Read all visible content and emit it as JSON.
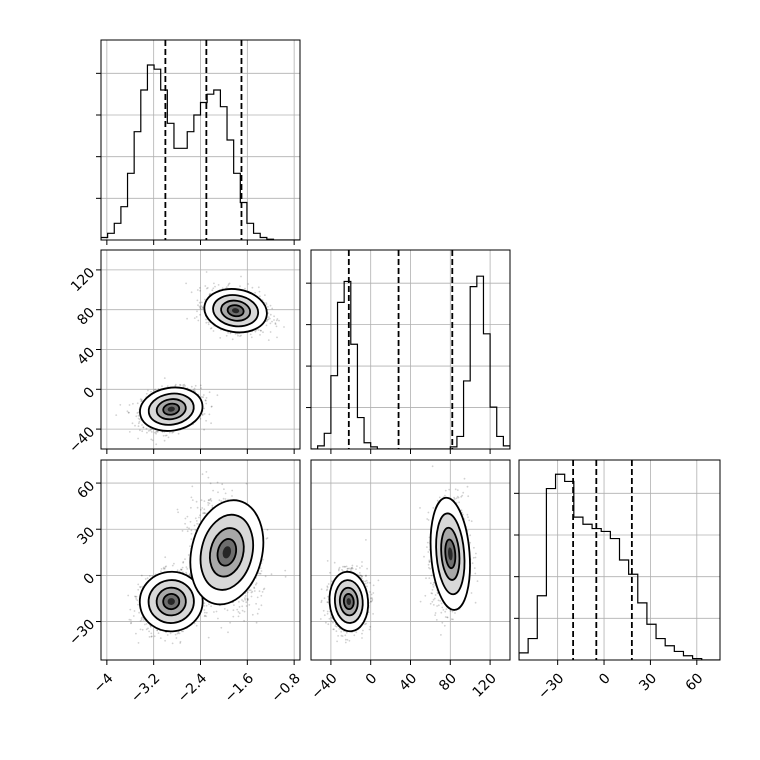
{
  "chart_data": {
    "type": "corner",
    "grid": true,
    "histograms": [
      {
        "param": 0,
        "range": [
          -4.1,
          -0.7
        ],
        "bins": 30,
        "counts": [
          0.3,
          0.8,
          2,
          4,
          8,
          13,
          18,
          21,
          20.5,
          18,
          14,
          11,
          11,
          13,
          15,
          16.5,
          17.5,
          18,
          16,
          12,
          8,
          4.5,
          2,
          0.8,
          0.3,
          0.1,
          0,
          0,
          0,
          0
        ],
        "quantiles": [
          -3.0,
          -2.3,
          -1.7
        ],
        "ymax": 24,
        "xticks": [
          -4.0,
          -3.2,
          -2.4,
          -1.6,
          -0.8
        ]
      },
      {
        "param": 1,
        "range": [
          -60,
          140
        ],
        "bins": 30,
        "counts": [
          0,
          0.3,
          1.5,
          7,
          14,
          16,
          10,
          3,
          0.6,
          0.2,
          0,
          0,
          0,
          0,
          0,
          0,
          0,
          0,
          0,
          0,
          0,
          0.2,
          1.2,
          6.5,
          15.5,
          16.5,
          11,
          4,
          1.2,
          0.3
        ],
        "quantiles": [
          -22,
          28,
          82
        ],
        "ymax": 19,
        "xticks": [
          -40,
          0,
          40,
          80,
          120
        ]
      },
      {
        "param": 2,
        "range": [
          -55,
          75
        ],
        "bins": 22,
        "counts": [
          0.5,
          1.5,
          4.5,
          12,
          13,
          12.5,
          10,
          9.5,
          9.2,
          9,
          8.5,
          7,
          6,
          4,
          2.5,
          1.5,
          1,
          0.6,
          0.3,
          0.1,
          0,
          0
        ],
        "quantiles": [
          -20,
          -5,
          18
        ],
        "ymax": 14,
        "xticks": [
          -30,
          0,
          30,
          60
        ]
      }
    ],
    "panels_2d": [
      {
        "x_param": 0,
        "y_param": 1,
        "modes": [
          {
            "cx": -2.9,
            "cy": -20,
            "sx": 0.25,
            "sy": 10,
            "rho": 0.2,
            "n": 1200
          },
          {
            "cx": -1.8,
            "cy": 79,
            "sx": 0.25,
            "sy": 10,
            "rho": -0.2,
            "n": 1200
          }
        ]
      },
      {
        "x_param": 0,
        "y_param": 2,
        "modes": [
          {
            "cx": -2.9,
            "cy": -17,
            "sx": 0.25,
            "sy": 9,
            "rho": 0.15,
            "n": 1300
          },
          {
            "cx": -1.95,
            "cy": 15,
            "sx": 0.28,
            "sy": 16,
            "rho": -0.3,
            "n": 1200
          }
        ]
      },
      {
        "x_param": 1,
        "y_param": 2,
        "modes": [
          {
            "cx": -22,
            "cy": -17,
            "sx": 9,
            "sy": 9,
            "rho": 0.1,
            "n": 1300
          },
          {
            "cx": 80,
            "cy": 14,
            "sx": 9,
            "sy": 17,
            "rho": 0.1,
            "n": 1200
          }
        ]
      }
    ],
    "yticks": {
      "row1": [
        -40,
        0,
        40,
        80,
        120
      ],
      "row2": [
        -30,
        0,
        30,
        60
      ]
    }
  }
}
